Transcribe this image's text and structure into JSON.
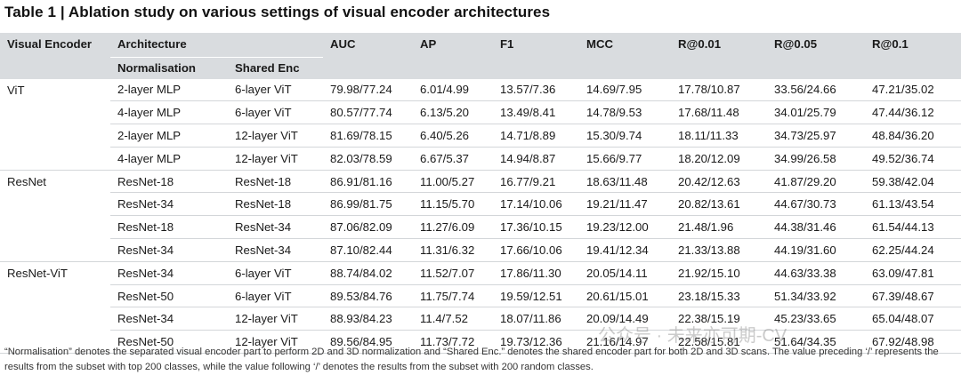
{
  "title": "Table 1 | Ablation study on various settings of visual encoder architectures",
  "header": {
    "visual_encoder": "Visual Encoder",
    "architecture": "Architecture",
    "normalisation": "Normalisation",
    "shared_enc": "Shared Enc",
    "metrics": [
      "AUC",
      "AP",
      "F1",
      "MCC",
      "R@0.01",
      "R@0.05",
      "R@0.1"
    ]
  },
  "groups": [
    {
      "encoder": "ViT",
      "rows": [
        {
          "norm": "2-layer MLP",
          "shared": "6-layer ViT",
          "values": [
            "79.98/77.24",
            "6.01/4.99",
            "13.57/7.36",
            "14.69/7.95",
            "17.78/10.87",
            "33.56/24.66",
            "47.21/35.02"
          ]
        },
        {
          "norm": "4-layer MLP",
          "shared": "6-layer ViT",
          "values": [
            "80.57/77.74",
            "6.13/5.20",
            "13.49/8.41",
            "14.78/9.53",
            "17.68/11.48",
            "34.01/25.79",
            "47.44/36.12"
          ]
        },
        {
          "norm": "2-layer MLP",
          "shared": "12-layer ViT",
          "values": [
            "81.69/78.15",
            "6.40/5.26",
            "14.71/8.89",
            "15.30/9.74",
            "18.11/11.33",
            "34.73/25.97",
            "48.84/36.20"
          ]
        },
        {
          "norm": "4-layer MLP",
          "shared": "12-layer ViT",
          "values": [
            "82.03/78.59",
            "6.67/5.37",
            "14.94/8.87",
            "15.66/9.77",
            "18.20/12.09",
            "34.99/26.58",
            "49.52/36.74"
          ]
        }
      ]
    },
    {
      "encoder": "ResNet",
      "rows": [
        {
          "norm": "ResNet-18",
          "shared": "ResNet-18",
          "values": [
            "86.91/81.16",
            "11.00/5.27",
            "16.77/9.21",
            "18.63/11.48",
            "20.42/12.63",
            "41.87/29.20",
            "59.38/42.04"
          ]
        },
        {
          "norm": "ResNet-34",
          "shared": "ResNet-18",
          "values": [
            "86.99/81.75",
            "11.15/5.70",
            "17.14/10.06",
            "19.21/11.47",
            "20.82/13.61",
            "44.67/30.73",
            "61.13/43.54"
          ]
        },
        {
          "norm": "ResNet-18",
          "shared": "ResNet-34",
          "values": [
            "87.06/82.09",
            "11.27/6.09",
            "17.36/10.15",
            "19.23/12.00",
            "21.48/1.96",
            "44.38/31.46",
            "61.54/44.13"
          ]
        },
        {
          "norm": "ResNet-34",
          "shared": "ResNet-34",
          "values": [
            "87.10/82.44",
            "11.31/6.32",
            "17.66/10.06",
            "19.41/12.34",
            "21.33/13.88",
            "44.19/31.60",
            "62.25/44.24"
          ]
        }
      ]
    },
    {
      "encoder": "ResNet-ViT",
      "rows": [
        {
          "norm": "ResNet-34",
          "shared": "6-layer ViT",
          "values": [
            "88.74/84.02",
            "11.52/7.07",
            "17.86/11.30",
            "20.05/14.11",
            "21.92/15.10",
            "44.63/33.38",
            "63.09/47.81"
          ]
        },
        {
          "norm": "ResNet-50",
          "shared": "6-layer ViT",
          "values": [
            "89.53/84.76",
            "11.75/7.74",
            "19.59/12.51",
            "20.61/15.01",
            "23.18/15.33",
            "51.34/33.92",
            "67.39/48.67"
          ]
        },
        {
          "norm": "ResNet-34",
          "shared": "12-layer ViT",
          "values": [
            "88.93/84.23",
            "11.4/7.52",
            "18.07/11.86",
            "20.09/14.49",
            "22.38/15.19",
            "45.23/33.65",
            "65.04/48.07"
          ]
        },
        {
          "norm": "ResNet-50",
          "shared": "12-layer ViT",
          "values": [
            "89.56/84.95",
            "11.73/7.72",
            "19.73/12.36",
            "21.16/14.97",
            "22.58/15.81",
            "51.64/34.35",
            "67.92/48.98"
          ]
        }
      ]
    }
  ],
  "footnote": "“Normalisation” denotes the separated visual encoder part to perform 2D and 3D normalization and “Shared Enc.” denotes the shared encoder part for both 2D and 3D scans. The value preceding ‘/’ represents the results from the subset with top 200 classes, while the value following ‘/’ denotes the results from the subset with 200 random classes.",
  "watermark": "公众号 · 未来亦可期-CV"
}
